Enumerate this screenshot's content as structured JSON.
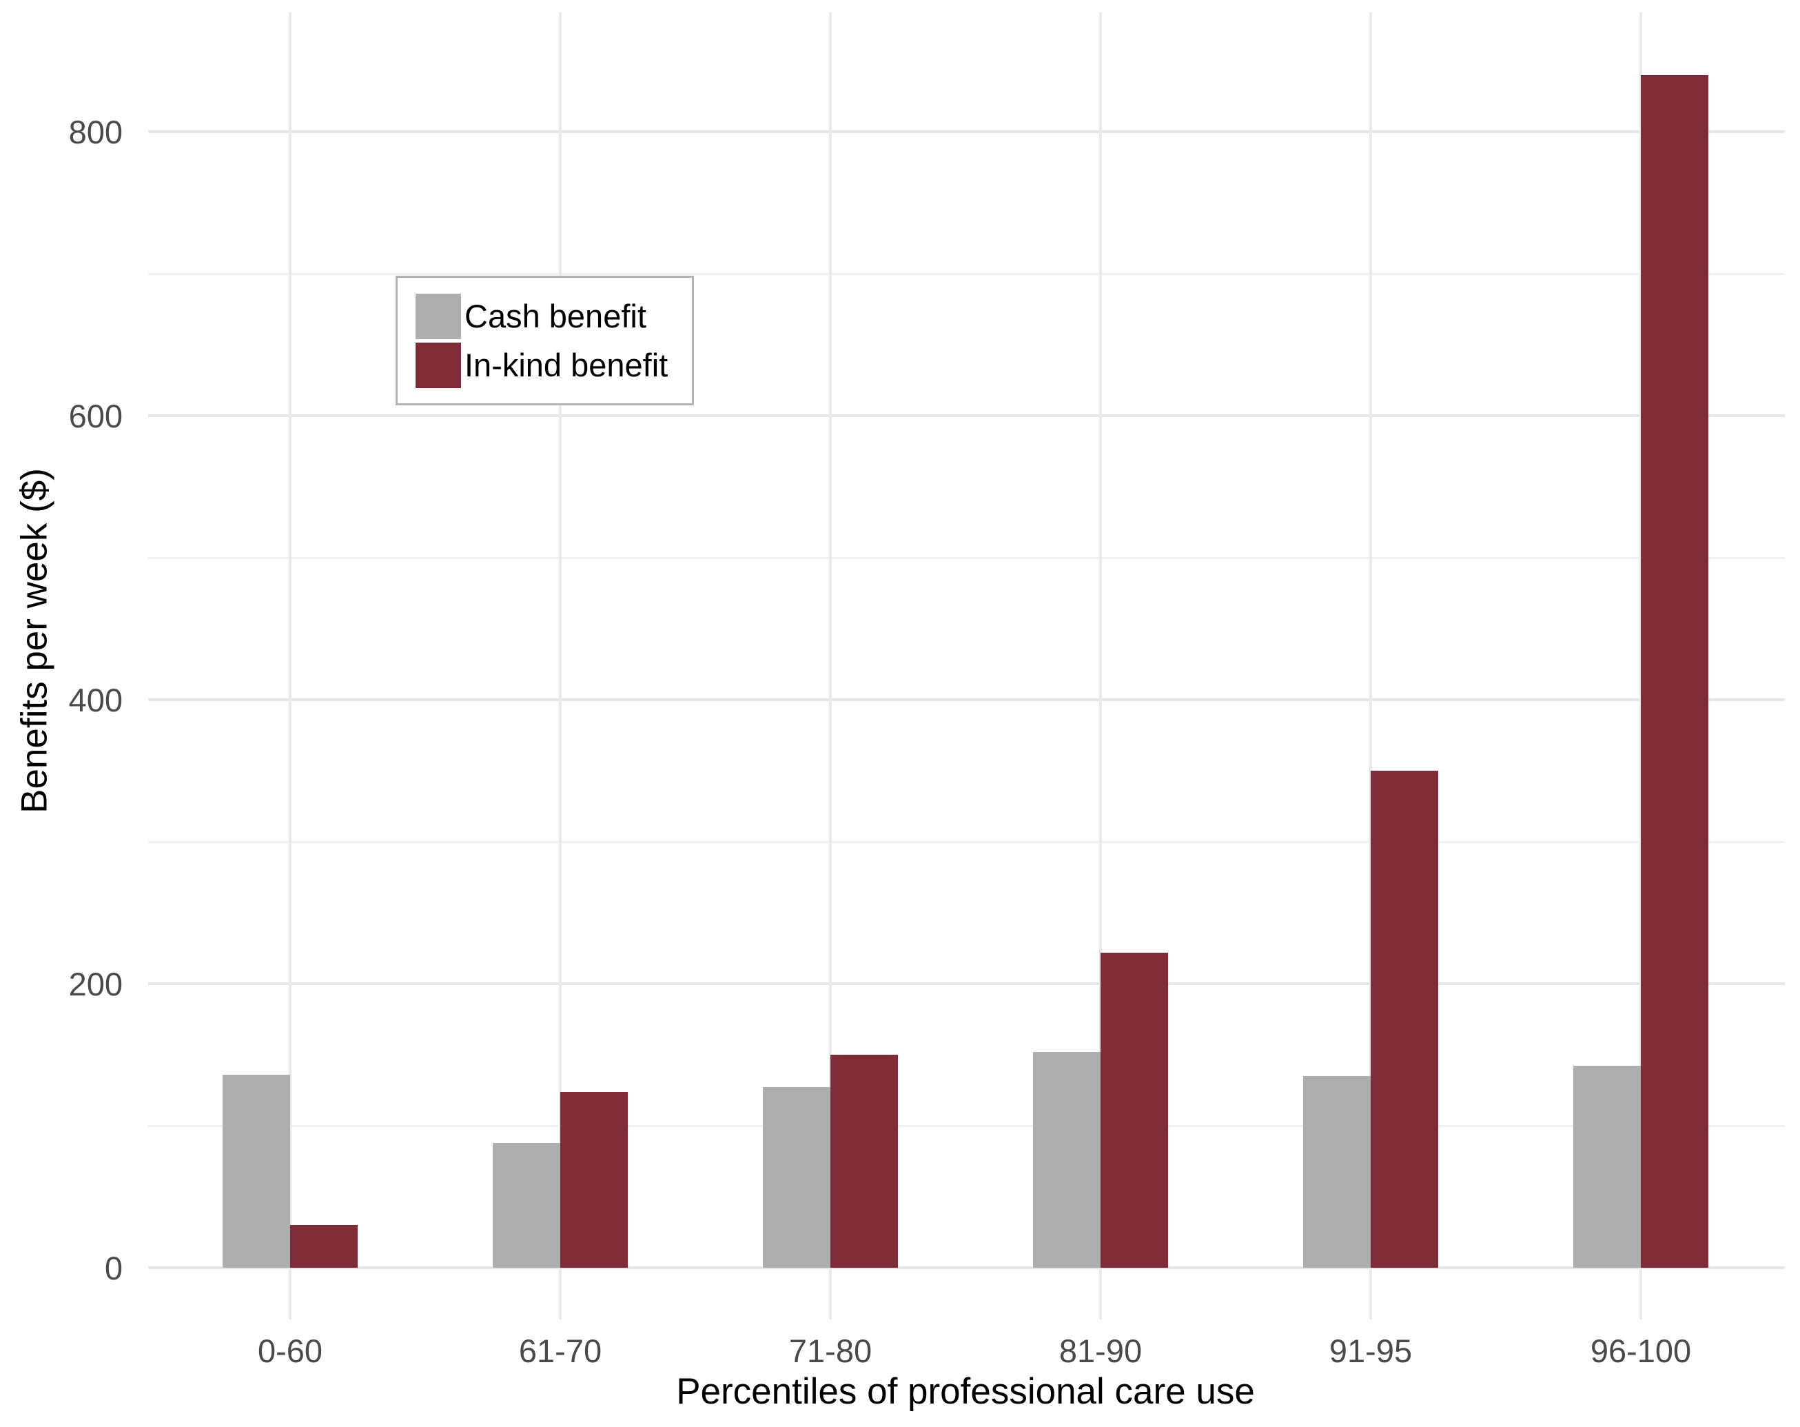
{
  "chart_data": {
    "type": "bar",
    "title": "",
    "categories": [
      "0-60",
      "61-70",
      "71-80",
      "81-90",
      "91-95",
      "96-100"
    ],
    "series": [
      {
        "name": "Cash benefit",
        "color": "#aeaeae",
        "values": [
          136,
          88,
          127,
          152,
          135,
          142
        ]
      },
      {
        "name": "In-kind benefit",
        "color": "#7e2d38",
        "values": [
          30,
          124,
          150,
          222,
          350,
          840
        ]
      }
    ],
    "xlabel": "Percentiles of professional care use",
    "ylabel": "Benefits per week ($)",
    "yticks": [
      0,
      200,
      400,
      600,
      800
    ],
    "yticks_minor": [
      100,
      300,
      500,
      700
    ],
    "ylim": [
      0,
      883
    ],
    "grid": {
      "show": true,
      "major_color": "#e6e6e6",
      "minor_color": "#f1f1f1",
      "vertical_per_category": true
    },
    "legend": {
      "position": "inside-top-left",
      "border_color": "#b2b2b2",
      "background": "#ffffff"
    },
    "colors": {
      "background": "#ffffff",
      "tick_label": "#4a4a4a",
      "axis_title": "#000000"
    }
  }
}
